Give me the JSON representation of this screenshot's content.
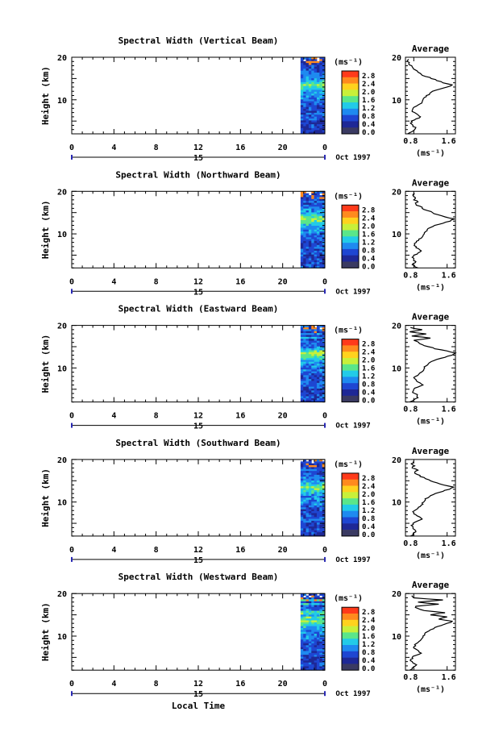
{
  "chart_data": {
    "type": "heatmap",
    "x_axis": {
      "label": "Local Time",
      "range": [
        0,
        24
      ],
      "ticks": [
        "0",
        "4",
        "8",
        "12",
        "16",
        "20",
        "0"
      ]
    },
    "date": {
      "day": "15",
      "month_year": "Oct 1997"
    },
    "height_axis": {
      "label": "Height (km)",
      "range": [
        2,
        20
      ],
      "ticks": [
        "10",
        "20"
      ]
    },
    "colorbar": {
      "unit": "(ms⁻¹)",
      "tick_labels": [
        "2.8",
        "2.4",
        "2.0",
        "1.6",
        "1.2",
        "0.8",
        "0.4",
        "0.0"
      ],
      "colors": [
        "#ff3a1a",
        "#ff8a1e",
        "#ffd21e",
        "#c8f03a",
        "#5ae68a",
        "#22cbe8",
        "#1e8af0",
        "#1e46d2",
        "#1e2896",
        "#3a3a62"
      ]
    },
    "data_time_window": [
      22,
      24
    ],
    "panels": [
      {
        "title": "Spectral Width (Vertical Beam)",
        "average_title": "Average",
        "average_xlabel": "(ms⁻¹)",
        "average_xticks": [
          "0.8",
          "1.6"
        ],
        "average_xlim": [
          0.6,
          1.8
        ],
        "average_profile": {
          "height": [
            2,
            2.5,
            3,
            3.5,
            4,
            4.5,
            5,
            5.5,
            6,
            6.5,
            7,
            7.5,
            8,
            8.5,
            9,
            9.5,
            10,
            10.5,
            11,
            11.5,
            12,
            12.5,
            13,
            13.5,
            14,
            14.5,
            15,
            15.5,
            16,
            16.5,
            17,
            17.5,
            18,
            18.5,
            19,
            19.5
          ],
          "value": [
            0.65,
            0.75,
            0.82,
            0.85,
            0.78,
            0.72,
            0.74,
            0.85,
            0.96,
            0.9,
            0.82,
            0.76,
            0.78,
            0.86,
            0.94,
            1.0,
            1.02,
            1.05,
            1.1,
            1.18,
            1.25,
            1.42,
            1.6,
            1.72,
            1.5,
            1.35,
            1.22,
            1.08,
            0.98,
            0.9,
            0.84,
            0.78,
            0.75,
            0.68,
            0.65,
            0.68
          ]
        }
      },
      {
        "title": "Spectral Width (Northward Beam)",
        "average_title": "Average",
        "average_xlabel": "(ms⁻¹)",
        "average_xticks": [
          "0.8",
          "1.6"
        ],
        "average_xlim": [
          0.6,
          1.8
        ],
        "average_profile": {
          "height": [
            2,
            2.5,
            3,
            3.5,
            4,
            4.5,
            5,
            5.5,
            6,
            6.5,
            7,
            7.5,
            8,
            8.5,
            9,
            9.5,
            10,
            10.5,
            11,
            11.5,
            12,
            12.5,
            13,
            13.5,
            14,
            14.5,
            15,
            15.5,
            16,
            16.5,
            17,
            17.5,
            18,
            18.5,
            19,
            19.5
          ],
          "value": [
            0.9,
            0.82,
            0.78,
            0.85,
            0.8,
            0.76,
            0.8,
            0.9,
            0.98,
            0.92,
            0.86,
            0.82,
            0.86,
            0.92,
            0.98,
            1.02,
            1.05,
            1.08,
            1.12,
            1.2,
            1.3,
            1.5,
            1.68,
            1.78,
            1.55,
            1.38,
            1.25,
            1.12,
            1.0,
            0.95,
            0.85,
            0.9,
            0.8,
            0.84,
            0.78,
            0.82
          ]
        }
      },
      {
        "title": "Spectral Width (Eastward Beam)",
        "average_title": "Average",
        "average_xlabel": "(ms⁻¹)",
        "average_xticks": [
          "0.8",
          "1.6"
        ],
        "average_xlim": [
          0.6,
          1.8
        ],
        "average_profile": {
          "height": [
            2,
            2.5,
            3,
            3.5,
            4,
            4.5,
            5,
            5.5,
            6,
            6.5,
            7,
            7.5,
            8,
            8.5,
            9,
            9.5,
            10,
            10.5,
            11,
            11.5,
            12,
            12.5,
            13,
            13.5,
            14,
            14.5,
            15,
            15.5,
            16,
            16.5,
            17,
            17.5,
            18,
            18.5,
            19,
            19.5
          ],
          "value": [
            0.7,
            0.8,
            0.9,
            0.88,
            0.82,
            0.78,
            0.8,
            0.9,
            1.02,
            0.95,
            0.86,
            0.82,
            0.84,
            0.92,
            0.98,
            1.04,
            1.06,
            1.1,
            1.15,
            1.22,
            1.35,
            1.55,
            1.72,
            1.8,
            1.6,
            1.3,
            1.15,
            1.0,
            0.92,
            0.8,
            1.2,
            0.75,
            1.1,
            0.7,
            1.0,
            0.72
          ]
        }
      },
      {
        "title": "Spectral Width (Southward Beam)",
        "average_title": "Average",
        "average_xlabel": "(ms⁻¹)",
        "average_xticks": [
          "0.8",
          "1.6"
        ],
        "average_xlim": [
          0.6,
          1.8
        ],
        "average_profile": {
          "height": [
            2,
            2.5,
            3,
            3.5,
            4,
            4.5,
            5,
            5.5,
            6,
            6.5,
            7,
            7.5,
            8,
            8.5,
            9,
            9.5,
            10,
            10.5,
            11,
            11.5,
            12,
            12.5,
            13,
            13.5,
            14,
            14.5,
            15,
            15.5,
            16,
            16.5,
            17,
            17.5,
            18,
            18.5,
            19,
            19.5
          ],
          "value": [
            0.72,
            0.78,
            0.85,
            0.82,
            0.78,
            0.74,
            0.78,
            0.88,
            1.0,
            0.94,
            0.85,
            0.8,
            0.82,
            0.9,
            0.96,
            1.02,
            1.04,
            1.08,
            1.14,
            1.2,
            1.32,
            1.5,
            1.66,
            1.76,
            1.52,
            1.36,
            1.2,
            1.08,
            0.95,
            0.88,
            0.82,
            0.9,
            0.76,
            0.82,
            0.74,
            0.78
          ]
        }
      },
      {
        "title": "Spectral Width (Westward Beam)",
        "average_title": "Average",
        "average_xlabel": "(ms⁻¹)",
        "average_xticks": [
          "0.8",
          "1.6"
        ],
        "average_xlim": [
          0.6,
          1.8
        ],
        "average_profile": {
          "height": [
            2,
            2.5,
            3,
            3.5,
            4,
            4.5,
            5,
            5.5,
            6,
            6.5,
            7,
            7.5,
            8,
            8.5,
            9,
            9.5,
            10,
            10.5,
            11,
            11.5,
            12,
            12.5,
            13,
            13.5,
            14,
            14.5,
            15,
            15.5,
            16,
            16.5,
            17,
            17.5,
            18,
            18.5,
            19,
            19.5
          ],
          "value": [
            0.7,
            0.76,
            0.84,
            0.82,
            0.76,
            0.72,
            0.76,
            0.86,
            0.98,
            0.92,
            0.84,
            0.8,
            0.82,
            0.9,
            0.96,
            1.0,
            1.02,
            1.06,
            1.12,
            1.2,
            1.3,
            1.46,
            1.6,
            1.72,
            1.4,
            1.6,
            1.2,
            1.55,
            1.05,
            0.9,
            0.85,
            1.4,
            0.9,
            1.5,
            0.8,
            0.75
          ]
        }
      }
    ]
  }
}
